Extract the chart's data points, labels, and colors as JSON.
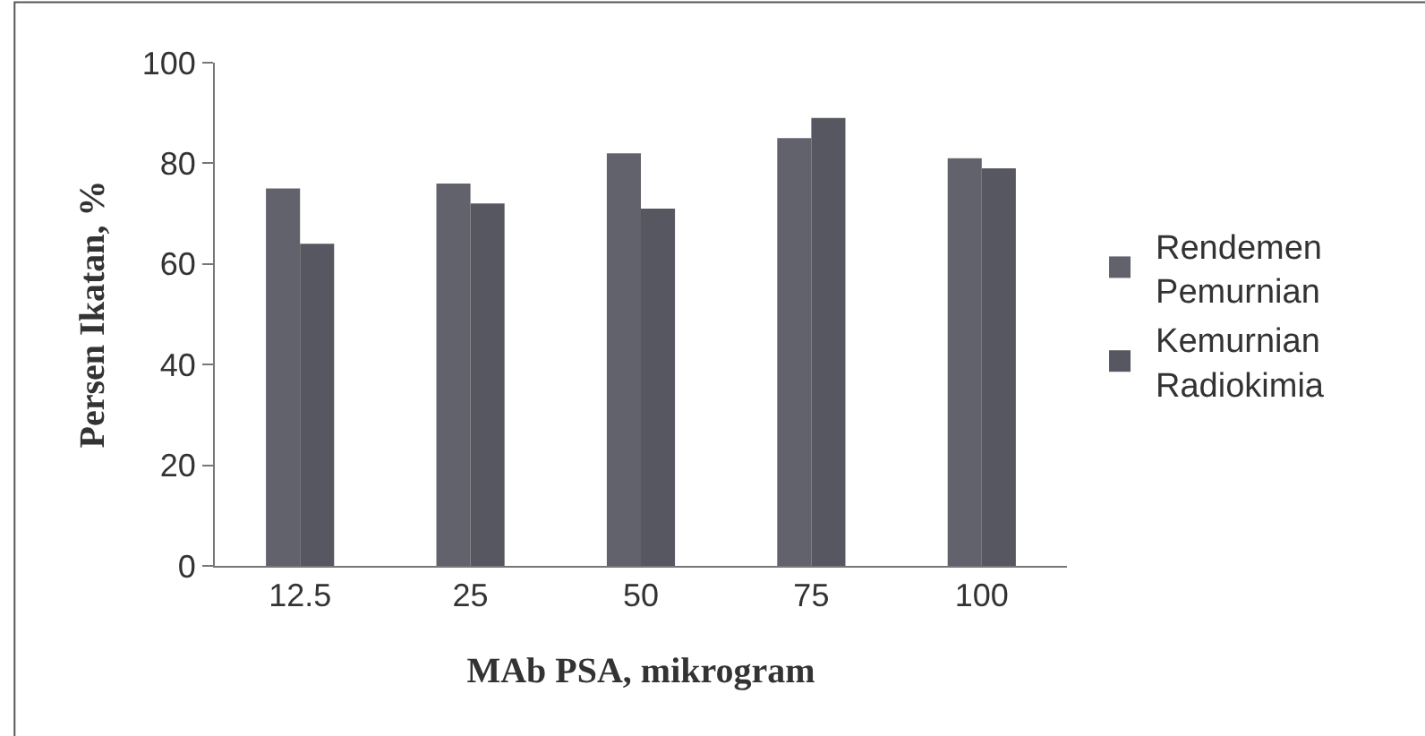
{
  "chart_data": {
    "type": "bar",
    "xlabel": "MAb PSA, mikrogram",
    "ylabel": "Persen Ikatan, %",
    "categories": [
      "12.5",
      "25",
      "50",
      "75",
      "100"
    ],
    "series": [
      {
        "name": "Rendemen Pemurnian",
        "color": "#62626c",
        "values": [
          75,
          76,
          82,
          85,
          81
        ]
      },
      {
        "name": "Kemurnian Radiokimia",
        "color": "#575761",
        "values": [
          64,
          72,
          71,
          89,
          79
        ]
      }
    ],
    "ylim": [
      0,
      100
    ],
    "yticks": [
      0,
      20,
      40,
      60,
      80,
      100
    ],
    "legend": "right"
  }
}
